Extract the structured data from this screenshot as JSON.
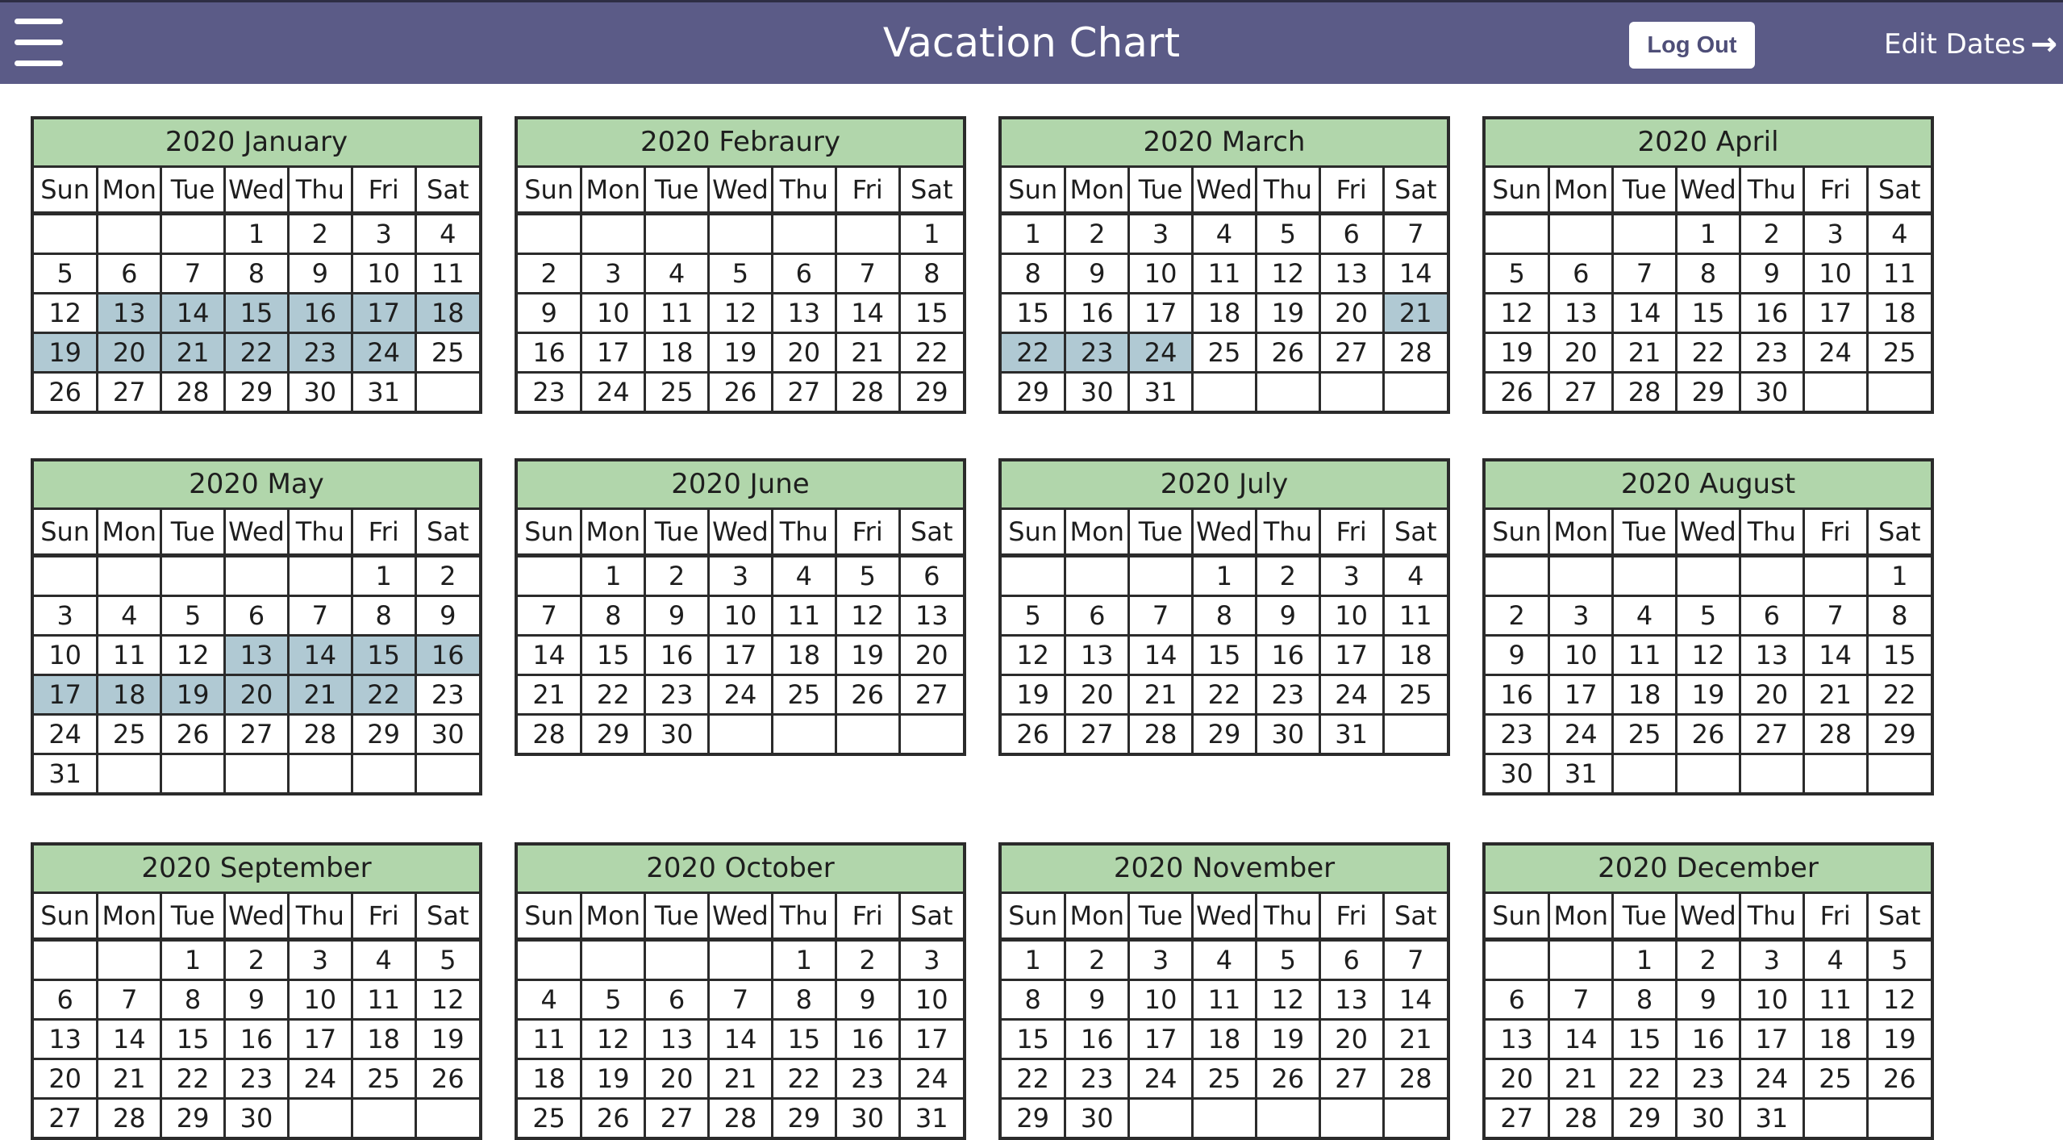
{
  "header": {
    "title": "Vacation Chart",
    "logout_label": "Log Out",
    "edit_dates_label": "Edit Dates",
    "menu_icon": "hamburger-menu-icon",
    "edit_icon": "arrow-right-icon",
    "bg_color": "#5b5b87"
  },
  "colors": {
    "month_header": "#b1d6ab",
    "vacation_day": "#b0c9d3",
    "border": "#2b2b2b"
  },
  "weekday_labels": [
    "Sun",
    "Mon",
    "Tue",
    "Wed",
    "Thu",
    "Fri",
    "Sat"
  ],
  "months": [
    {
      "title": "2020 January",
      "start_weekday": 3,
      "days": 31,
      "highlighted": [
        13,
        14,
        15,
        16,
        17,
        18,
        19,
        20,
        21,
        22,
        23,
        24
      ]
    },
    {
      "title": "2020 Febraury",
      "start_weekday": 6,
      "days": 29,
      "highlighted": []
    },
    {
      "title": "2020 March",
      "start_weekday": 0,
      "days": 31,
      "highlighted": [
        21,
        22,
        23,
        24
      ]
    },
    {
      "title": "2020 April",
      "start_weekday": 3,
      "days": 30,
      "highlighted": []
    },
    {
      "title": "2020 May",
      "start_weekday": 5,
      "days": 31,
      "highlighted": [
        13,
        14,
        15,
        16,
        17,
        18,
        19,
        20,
        21,
        22
      ]
    },
    {
      "title": "2020 June",
      "start_weekday": 1,
      "days": 30,
      "highlighted": []
    },
    {
      "title": "2020 July",
      "start_weekday": 3,
      "days": 31,
      "highlighted": []
    },
    {
      "title": "2020 August",
      "start_weekday": 6,
      "days": 31,
      "highlighted": []
    },
    {
      "title": "2020 September",
      "start_weekday": 2,
      "days": 30,
      "highlighted": []
    },
    {
      "title": "2020 October",
      "start_weekday": 4,
      "days": 31,
      "highlighted": []
    },
    {
      "title": "2020 November",
      "start_weekday": 0,
      "days": 30,
      "highlighted": []
    },
    {
      "title": "2020 December",
      "start_weekday": 2,
      "days": 31,
      "highlighted": []
    }
  ]
}
